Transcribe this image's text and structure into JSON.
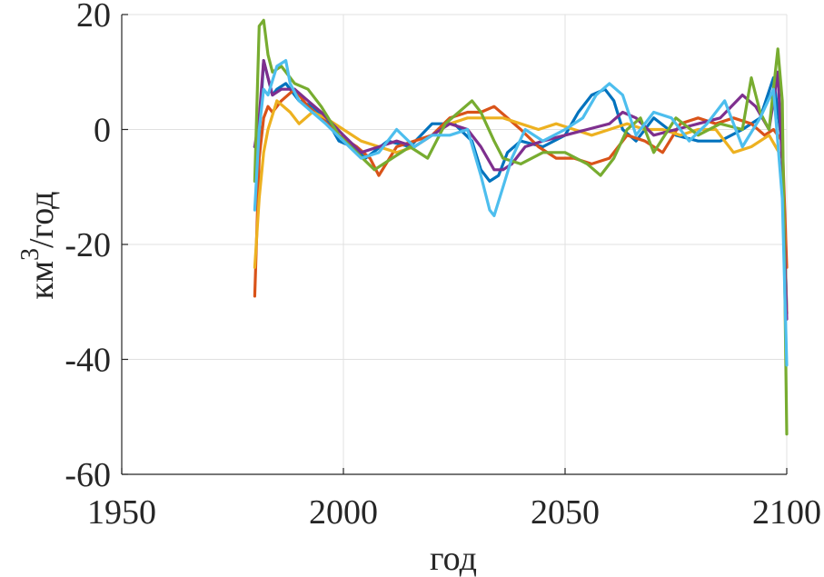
{
  "chart_data": {
    "type": "line",
    "xlabel": "год",
    "ylabel_base": "км",
    "ylabel_sup": "3",
    "ylabel_tail": "/год",
    "xlim": [
      1950,
      2100
    ],
    "ylim": [
      -60,
      20
    ],
    "x_ticks": [
      1950,
      2000,
      2050,
      2100
    ],
    "y_ticks": [
      20,
      0,
      -20,
      -40,
      -60
    ],
    "x_tick_labels": [
      "1950",
      "2000",
      "2050",
      "2100"
    ],
    "y_tick_labels": [
      "20",
      "0",
      "-20",
      "-40",
      "-60"
    ],
    "grid": true,
    "series": [
      {
        "color": "#0072BD",
        "x": [
          1980,
          1981,
          1982,
          1983,
          1984,
          1985,
          1987,
          1990,
          1993,
          1996,
          1999,
          2002,
          2005,
          2010,
          2015,
          2020,
          2025,
          2029,
          2031,
          2033,
          2035,
          2037,
          2040,
          2045,
          2050,
          2053,
          2056,
          2059,
          2061,
          2063,
          2066,
          2070,
          2075,
          2080,
          2085,
          2090,
          2094,
          2097,
          2099,
          2100
        ],
        "values": [
          -3,
          -1,
          12,
          9,
          6,
          7,
          8,
          5,
          4,
          2,
          -2,
          -3,
          -5,
          -2,
          -3,
          1,
          1,
          -2,
          -7,
          -9,
          -8,
          -4,
          -2,
          -3,
          -1,
          3,
          6,
          7,
          5,
          0,
          -2,
          2,
          -1,
          -2,
          -2,
          0,
          2,
          9,
          -3,
          -32
        ]
      },
      {
        "color": "#D95319",
        "x": [
          1980,
          1981,
          1982,
          1983,
          1984,
          1986,
          1989,
          1992,
          1995,
          1999,
          2003,
          2006,
          2008,
          2012,
          2016,
          2020,
          2024,
          2028,
          2031,
          2034,
          2037,
          2040,
          2044,
          2048,
          2052,
          2056,
          2060,
          2064,
          2068,
          2072,
          2076,
          2080,
          2084,
          2088,
          2092,
          2095,
          2097,
          2099,
          2100
        ],
        "values": [
          -29,
          -5,
          2,
          4,
          3,
          5,
          7,
          4,
          2,
          -1,
          -3,
          -5,
          -8,
          -3,
          -2,
          -1,
          2,
          3,
          3,
          4,
          2,
          0,
          -3,
          -5,
          -5,
          -6,
          -5,
          -1,
          -2,
          -4,
          1,
          2,
          1,
          2,
          1,
          -1,
          0,
          -2,
          -24
        ]
      },
      {
        "color": "#EDB120",
        "x": [
          1980,
          1981,
          1982,
          1983,
          1985,
          1988,
          1990,
          1993,
          1996,
          2000,
          2004,
          2008,
          2012,
          2016,
          2020,
          2024,
          2028,
          2032,
          2036,
          2040,
          2044,
          2048,
          2052,
          2056,
          2060,
          2064,
          2068,
          2072,
          2076,
          2080,
          2084,
          2088,
          2092,
          2096,
          2099,
          2100
        ],
        "values": [
          -24,
          -12,
          -4,
          0,
          5,
          3,
          1,
          3,
          2,
          0,
          -2,
          -3,
          -4,
          -3,
          -1,
          1,
          2,
          2,
          2,
          1,
          0,
          1,
          0,
          -1,
          0,
          1,
          0,
          0,
          -1,
          0,
          0,
          -4,
          -3,
          -1,
          -5,
          -32
        ]
      },
      {
        "color": "#7E2F8E",
        "x": [
          1980,
          1981,
          1982,
          1983,
          1984,
          1986,
          1989,
          1992,
          1995,
          2000,
          2004,
          2008,
          2012,
          2016,
          2020,
          2024,
          2028,
          2031,
          2034,
          2036,
          2038,
          2041,
          2045,
          2050,
          2055,
          2060,
          2063,
          2066,
          2070,
          2075,
          2080,
          2085,
          2090,
          2093,
          2096,
          2098,
          2099,
          2100
        ],
        "values": [
          -3,
          2,
          12,
          9,
          6,
          7,
          7,
          5,
          3,
          -1,
          -4,
          -3,
          -2,
          -3,
          -1,
          1,
          0,
          -3,
          -7,
          -7,
          -6,
          -3,
          -2,
          -1,
          0,
          1,
          3,
          2,
          -1,
          0,
          1,
          2,
          6,
          4,
          0,
          10,
          -6,
          -33
        ]
      },
      {
        "color": "#77AC30",
        "x": [
          1980,
          1981,
          1982,
          1983,
          1984,
          1986,
          1989,
          1992,
          1995,
          1999,
          2003,
          2007,
          2011,
          2015,
          2019,
          2023,
          2026,
          2029,
          2031,
          2034,
          2036,
          2040,
          2045,
          2050,
          2055,
          2058,
          2061,
          2064,
          2067,
          2070,
          2075,
          2080,
          2085,
          2090,
          2092,
          2094,
          2096,
          2098,
          2099,
          2100
        ],
        "values": [
          -9,
          18,
          19,
          13,
          10,
          11,
          8,
          7,
          4,
          -1,
          -4,
          -7,
          -5,
          -3,
          -5,
          1,
          3,
          5,
          3,
          -2,
          -5,
          -6,
          -4,
          -4,
          -6,
          -8,
          -5,
          0,
          2,
          -4,
          2,
          -1,
          1,
          0,
          9,
          3,
          0,
          14,
          5,
          -53
        ]
      },
      {
        "color": "#4DBEEE",
        "x": [
          1980,
          1981,
          1982,
          1983,
          1985,
          1987,
          1988,
          1990,
          1993,
          1996,
          2000,
          2004,
          2008,
          2012,
          2016,
          2020,
          2024,
          2028,
          2031,
          2033,
          2034,
          2036,
          2038,
          2041,
          2045,
          2050,
          2054,
          2057,
          2060,
          2063,
          2066,
          2070,
          2074,
          2078,
          2082,
          2086,
          2090,
          2094,
          2097,
          2099,
          2100
        ],
        "values": [
          -14,
          0,
          7,
          6,
          11,
          12,
          8,
          5,
          3,
          1,
          -2,
          -5,
          -4,
          0,
          -3,
          -1,
          -1,
          0,
          -8,
          -14,
          -15,
          -10,
          -5,
          0,
          -2,
          0,
          2,
          6,
          8,
          6,
          -1,
          3,
          2,
          -2,
          1,
          5,
          -3,
          2,
          7,
          -12,
          -41
        ]
      }
    ]
  }
}
